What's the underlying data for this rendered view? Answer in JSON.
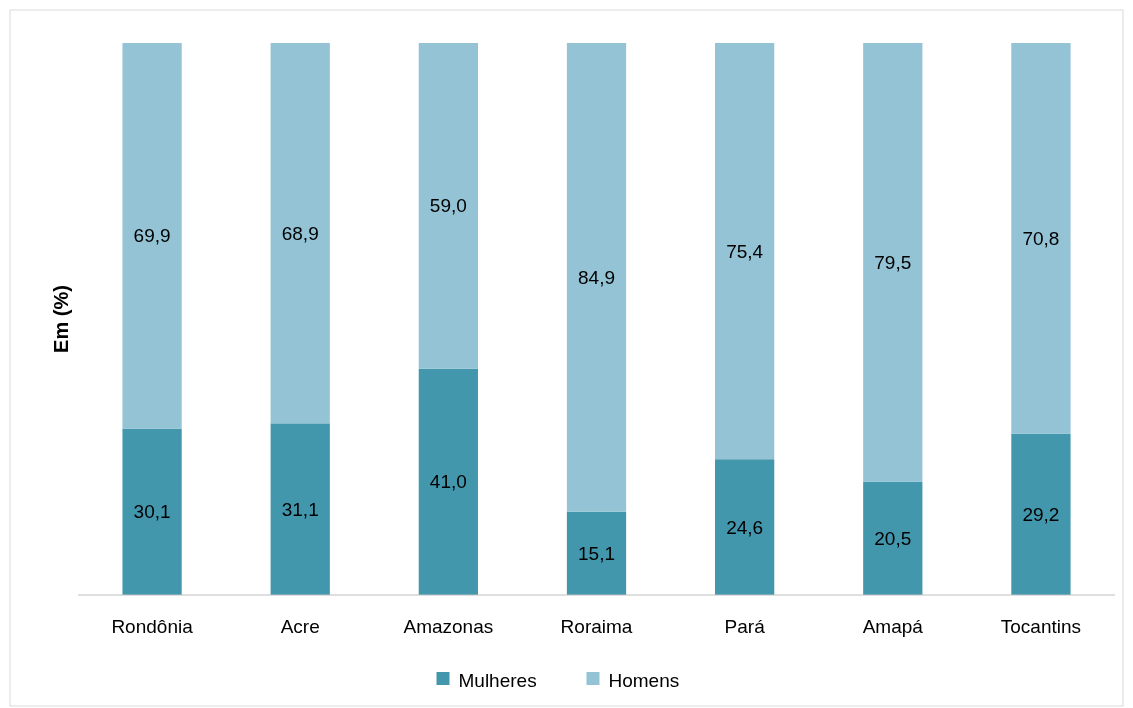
{
  "chart_data": {
    "type": "bar",
    "stacked": true,
    "ylabel": "Em (%)",
    "categories": [
      "Rondônia",
      "Acre",
      "Amazonas",
      "Roraima",
      "Pará",
      "Amapá",
      "Tocantins"
    ],
    "series": [
      {
        "name": "Mulheres",
        "color": "#4397ad",
        "values": [
          30.1,
          31.1,
          41.0,
          15.1,
          24.6,
          20.5,
          29.2
        ],
        "value_labels": [
          "30,1",
          "31,1",
          "41,0",
          "15,1",
          "24,6",
          "20,5",
          "29,2"
        ]
      },
      {
        "name": "Homens",
        "color": "#93c3d5",
        "values": [
          69.9,
          68.9,
          59.0,
          84.9,
          75.4,
          79.5,
          70.8
        ],
        "value_labels": [
          "69,9",
          "68,9",
          "59,0",
          "84,9",
          "75,4",
          "79,5",
          "70,8"
        ]
      }
    ],
    "legend": "bottom"
  }
}
